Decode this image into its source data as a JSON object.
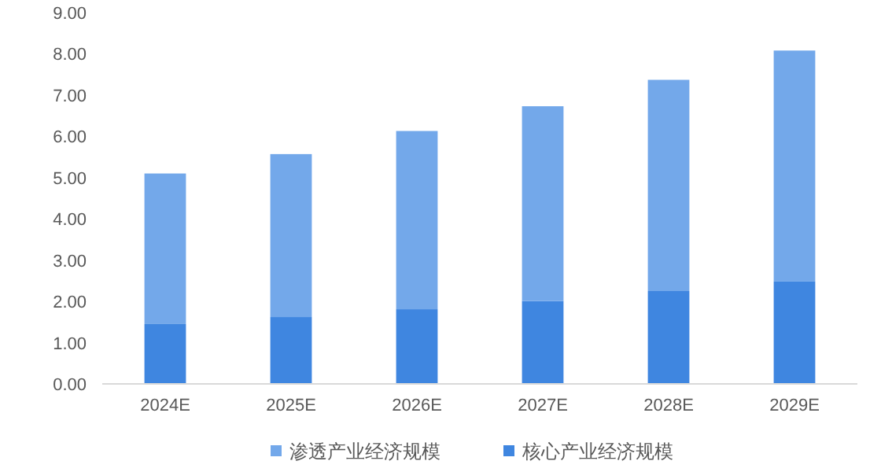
{
  "chart_data": {
    "type": "bar",
    "stacked": true,
    "categories": [
      "2024E",
      "2025E",
      "2026E",
      "2027E",
      "2028E",
      "2029E"
    ],
    "series": [
      {
        "name": "核心产业经济规模",
        "color": "#3f86e0",
        "values": [
          1.45,
          1.62,
          1.81,
          2.01,
          2.25,
          2.48
        ]
      },
      {
        "name": "渗透产业经济规模",
        "color": "#73a8ea",
        "values": [
          3.65,
          3.95,
          4.32,
          4.72,
          5.12,
          5.6
        ]
      }
    ],
    "ylim": [
      0,
      9
    ],
    "yticks": [
      {
        "value": 0,
        "label": "0.00"
      },
      {
        "value": 1,
        "label": "1.00"
      },
      {
        "value": 2,
        "label": "2.00"
      },
      {
        "value": 3,
        "label": "3.00"
      },
      {
        "value": 4,
        "label": "4.00"
      },
      {
        "value": 5,
        "label": "5.00"
      },
      {
        "value": 6,
        "label": "6.00"
      },
      {
        "value": 7,
        "label": "7.00"
      },
      {
        "value": 8,
        "label": "8.00"
      },
      {
        "value": 9,
        "label": "9.00"
      }
    ],
    "grid": false,
    "legend": "bottom"
  }
}
